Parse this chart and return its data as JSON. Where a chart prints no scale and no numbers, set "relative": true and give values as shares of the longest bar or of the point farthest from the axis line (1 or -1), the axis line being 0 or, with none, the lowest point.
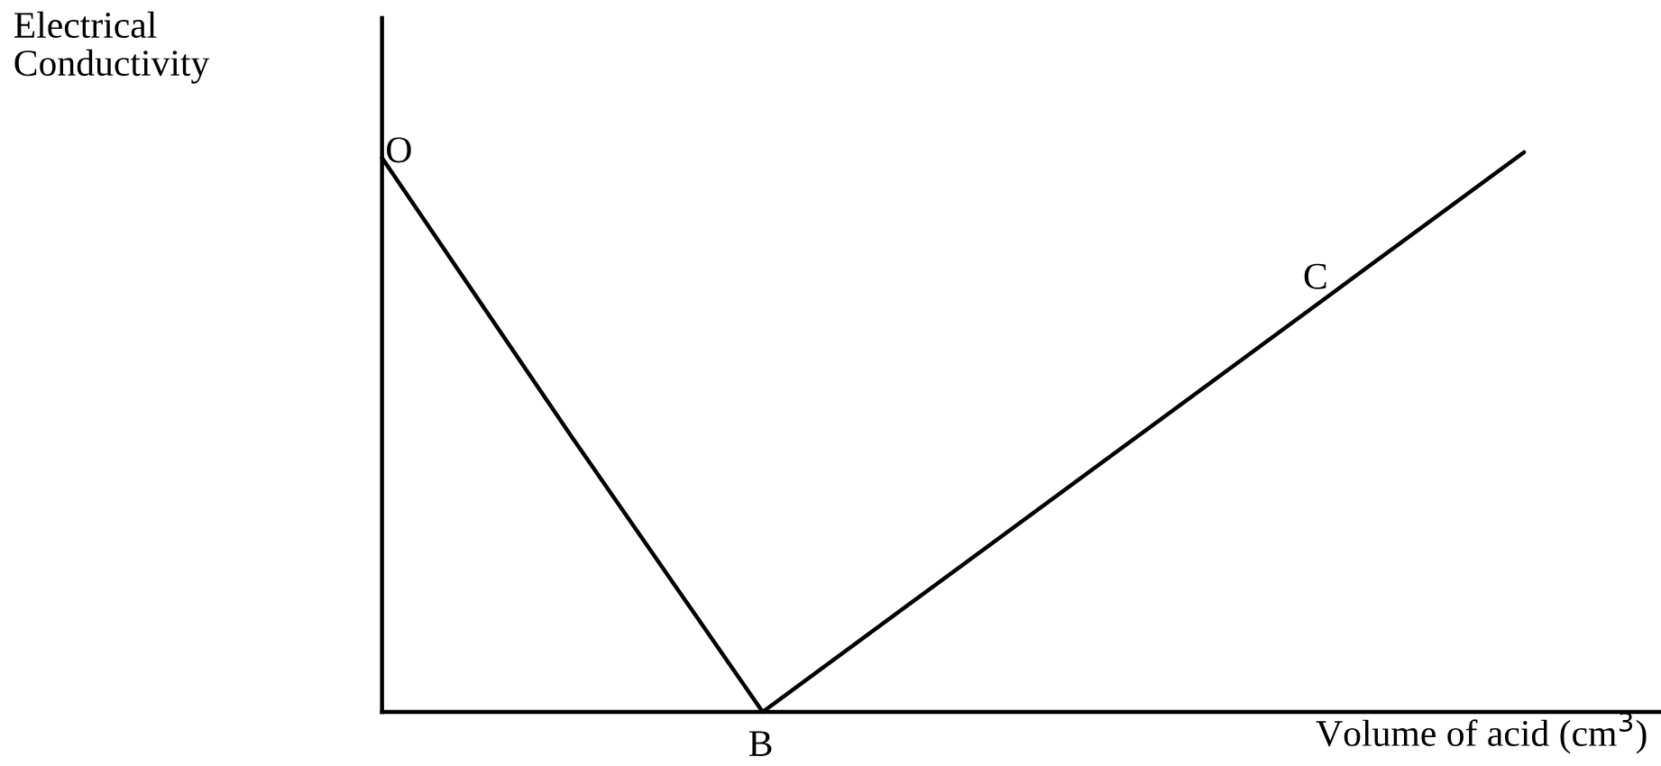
{
  "chart_data": {
    "type": "line",
    "relative": true,
    "xlabel": "Volume of acid (cm$^{3}$)",
    "categories": [
      null,
      null,
      null,
      null,
      null,
      null,
      null
    ],
    "color": "#000000",
    "values": [
      0.99,
      0.49,
      0,
      0.25,
      0.5,
      0.75,
      1
    ],
    "annotations": [
      "Electrical\nConductivity",
      "O",
      "B",
      "C"
    ]
  }
}
